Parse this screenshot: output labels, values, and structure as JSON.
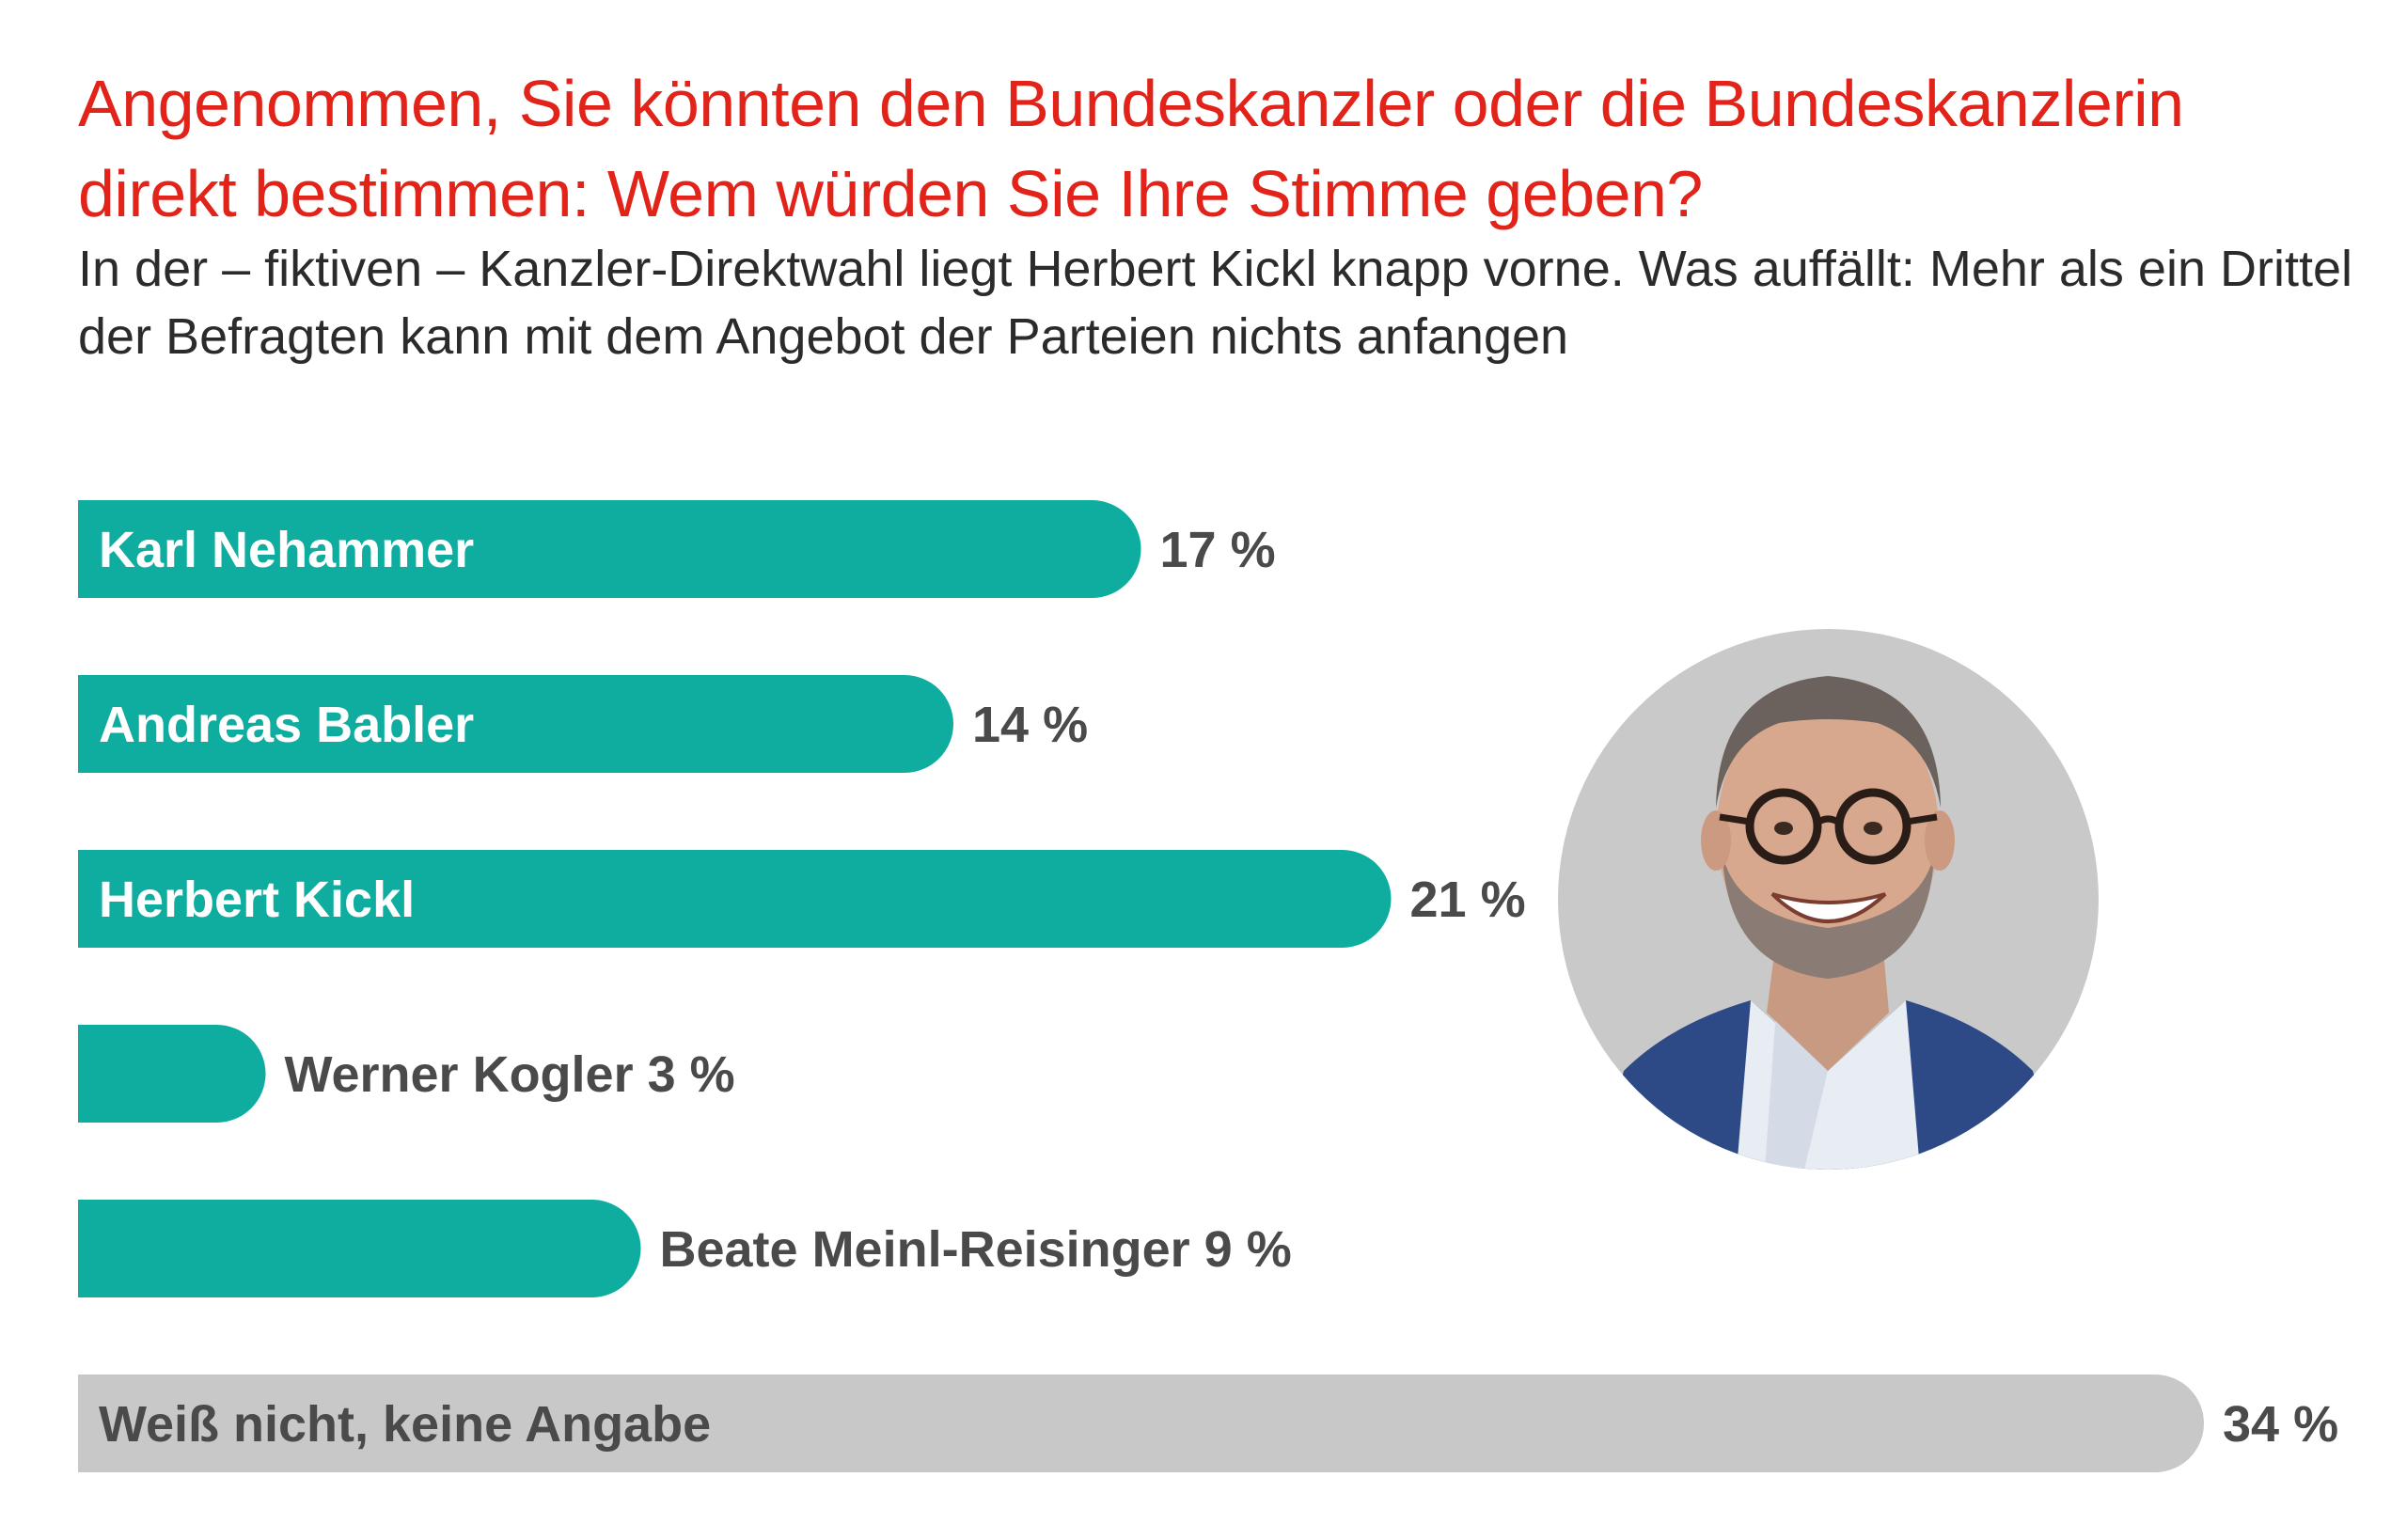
{
  "header": {
    "title": "Angenommen, Sie könnten den Bundeskanzler oder die Bundeskanzlerin direkt bestimmen: Wem würden Sie Ihre Stimme geben?",
    "subtitle": "In der – fiktiven – Kanzler-Direktwahl liegt Herbert Kickl knapp vorne. Was auffällt: Mehr als ein Drittel der Befragten kann mit dem Angebot der Parteien nichts anfangen"
  },
  "colors": {
    "title": "#e2231a",
    "bar_candidate": "#0fada0",
    "bar_undecided": "#c8c8c8",
    "label_inside_candidate": "#ffffff",
    "label_inside_undecided": "#4a4a4a",
    "value_text": "#4a4a4a",
    "portrait_bg": "#c9c9c9"
  },
  "chart_data": {
    "type": "bar",
    "orientation": "horizontal",
    "title": "Angenommen, Sie könnten den Bundeskanzler oder die Bundeskanzlerin direkt bestimmen: Wem würden Sie Ihre Stimme geben?",
    "xlabel": "",
    "ylabel": "",
    "unit": "%",
    "xlim": [
      0,
      34
    ],
    "categories": [
      "Karl Nehammer",
      "Andreas Babler",
      "Herbert Kickl",
      "Werner Kogler",
      "Beate Meinl-Reisinger",
      "Weiß nicht, keine Angabe"
    ],
    "values": [
      17,
      14,
      21,
      3,
      9,
      34
    ],
    "value_labels": [
      "17 %",
      "14 %",
      "21 %",
      "3 %",
      "9 %",
      "34 %"
    ],
    "label_position": [
      "inside",
      "inside",
      "inside",
      "outside",
      "outside",
      "inside"
    ],
    "bar_style": [
      "candidate",
      "candidate",
      "candidate",
      "candidate",
      "candidate",
      "undecided"
    ],
    "highlight": "Herbert Kickl"
  },
  "portrait": {
    "icon": "portrait-photo-icon"
  }
}
